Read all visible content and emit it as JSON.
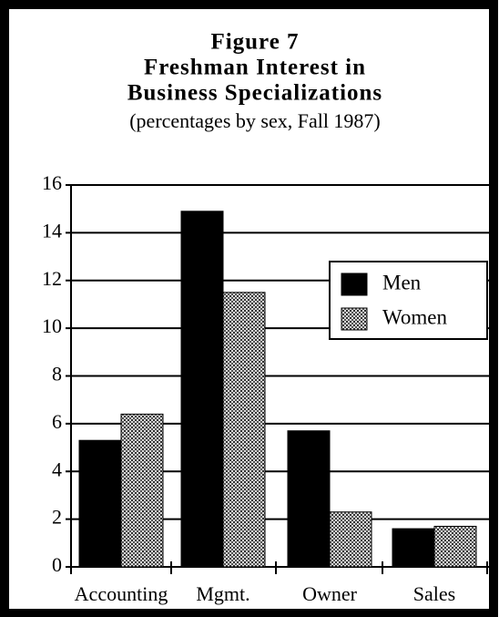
{
  "chart_data": {
    "type": "bar",
    "title": [
      "Figure 7",
      "Freshman Interest in",
      "Business Specializations"
    ],
    "subtitle": "(percentages by sex, Fall 1987)",
    "categories": [
      "Accounting",
      "Mgmt.",
      "Owner",
      "Sales"
    ],
    "series": [
      {
        "name": "Men",
        "color": "#000000",
        "values": [
          5.3,
          14.9,
          5.7,
          1.6
        ]
      },
      {
        "name": "Women",
        "color": "#9a9a9a",
        "values": [
          6.4,
          11.5,
          2.3,
          1.7
        ]
      }
    ],
    "ylim": [
      0,
      16
    ],
    "yticks": [
      0,
      2,
      4,
      6,
      8,
      10,
      12,
      14,
      16
    ],
    "grid": true,
    "legend": "right"
  }
}
